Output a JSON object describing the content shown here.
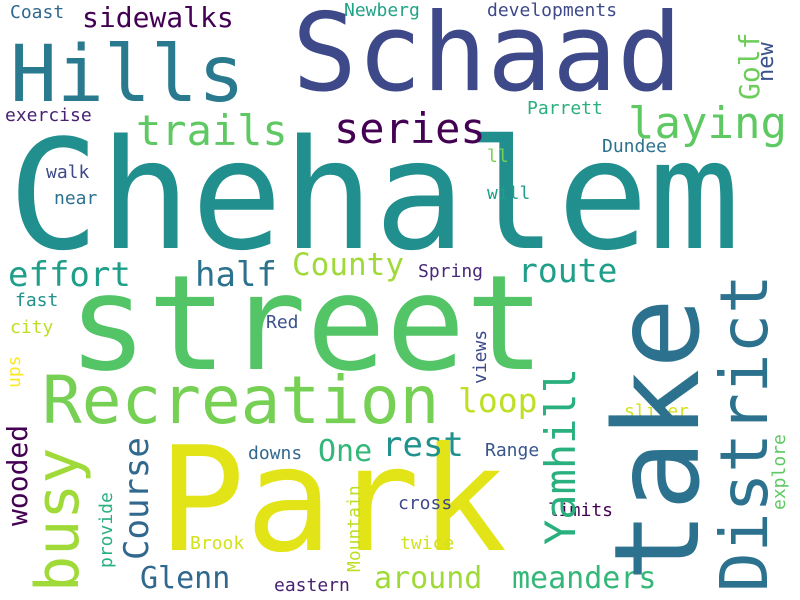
{
  "cloud": {
    "words": [
      {
        "text": "Chehalem",
        "color": "#218f8d"
      },
      {
        "text": "street",
        "color": "#53c567"
      },
      {
        "text": "Park",
        "color": "#e3e418"
      },
      {
        "text": "take",
        "color": "#2c728e"
      },
      {
        "text": "Schaad",
        "color": "#3e4989"
      },
      {
        "text": "Hills",
        "color": "#297a8e"
      },
      {
        "text": "Recreation",
        "color": "#75d054"
      },
      {
        "text": "District",
        "color": "#2c728e"
      },
      {
        "text": "busy",
        "color": "#a0da39"
      },
      {
        "text": "Yamhill",
        "color": "#2ab07f"
      },
      {
        "text": "trails",
        "color": "#5ec962"
      },
      {
        "text": "series",
        "color": "#440154"
      },
      {
        "text": "laying",
        "color": "#5ec962"
      },
      {
        "text": "effort",
        "color": "#1f9e89"
      },
      {
        "text": "half",
        "color": "#2c728e"
      },
      {
        "text": "County",
        "color": "#a0da39"
      },
      {
        "text": "route",
        "color": "#1f9e89"
      },
      {
        "text": "loop",
        "color": "#bddf26"
      },
      {
        "text": "rest",
        "color": "#21918c"
      },
      {
        "text": "One",
        "color": "#35b779"
      },
      {
        "text": "Course",
        "color": "#31688e"
      },
      {
        "text": "wooded",
        "color": "#440154"
      },
      {
        "text": "Glenn",
        "color": "#31688e"
      },
      {
        "text": "around",
        "color": "#a0da39"
      },
      {
        "text": "meanders",
        "color": "#35b779"
      },
      {
        "text": "sidewalks",
        "color": "#440154"
      },
      {
        "text": "Golf",
        "color": "#6ccd5a"
      },
      {
        "text": "new",
        "color": "#3b528b"
      },
      {
        "text": "Coast",
        "color": "#31688e"
      },
      {
        "text": "Newberg",
        "color": "#20a386"
      },
      {
        "text": "developments",
        "color": "#3e4989"
      },
      {
        "text": "exercise",
        "color": "#482173"
      },
      {
        "text": "Parrett",
        "color": "#2ab07f"
      },
      {
        "text": "Dundee",
        "color": "#2c728e"
      },
      {
        "text": "ll",
        "color": "#7ad151"
      },
      {
        "text": "walk",
        "color": "#3e4989"
      },
      {
        "text": "will",
        "color": "#1f9e89"
      },
      {
        "text": "near",
        "color": "#2c728e"
      },
      {
        "text": "Spring",
        "color": "#482878"
      },
      {
        "text": "fast",
        "color": "#21918c"
      },
      {
        "text": "city",
        "color": "#bddf26"
      },
      {
        "text": "Red",
        "color": "#3b528b"
      },
      {
        "text": "views",
        "color": "#3e4989"
      },
      {
        "text": "ups",
        "color": "#fde725"
      },
      {
        "text": "sliver",
        "color": "#d2e21b"
      },
      {
        "text": "downs",
        "color": "#31688e"
      },
      {
        "text": "Range",
        "color": "#39568c"
      },
      {
        "text": "explore",
        "color": "#5ec962"
      },
      {
        "text": "Mountain",
        "color": "#bddf26"
      },
      {
        "text": "cross",
        "color": "#3e4989"
      },
      {
        "text": "limits",
        "color": "#440154"
      },
      {
        "text": "provide",
        "color": "#2ab07f"
      },
      {
        "text": "Brook",
        "color": "#d2e21b"
      },
      {
        "text": "twice",
        "color": "#d2e21b"
      },
      {
        "text": "eastern",
        "color": "#482173"
      }
    ]
  }
}
